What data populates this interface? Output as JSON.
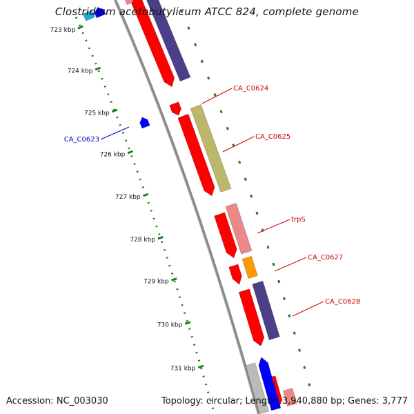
{
  "title": "Clostridium acetobutylicum ATCC 824, complete genome",
  "accession": "Accession: NC_003030",
  "stats": "Topology: circular; Length: 3,940,880 bp; Genes: 3,777",
  "colors": {
    "backbone": "#8a8a8a",
    "tick": "#1f7d1f",
    "label_reverse": "#cc0000",
    "label_forward": "#0000cc",
    "cds_red": "#ff0000",
    "cds_pink": "#ee8888",
    "cds_olive": "#bdb76b",
    "cds_orange": "#ff9900",
    "cds_purple": "#4b3f8a",
    "cds_blue": "#0000ff",
    "cds_grey": "#bbbbbb",
    "cds_cyan": "#22aadd"
  },
  "ruler": [
    "723 kbp",
    "724 kbp",
    "725 kbp",
    "726 kbp",
    "727 kbp",
    "728 kbp",
    "729 kbp",
    "730 kbp",
    "731 kbp"
  ],
  "gene_labels": [
    {
      "text": "CA_C0624",
      "strand": "reverse"
    },
    {
      "text": "CA_C0623",
      "strand": "forward"
    },
    {
      "text": "CA_C0625",
      "strand": "reverse"
    },
    {
      "text": "trpS",
      "strand": "reverse"
    },
    {
      "text": "CA_C0627",
      "strand": "reverse"
    },
    {
      "text": "CA_C0628",
      "strand": "reverse"
    }
  ]
}
